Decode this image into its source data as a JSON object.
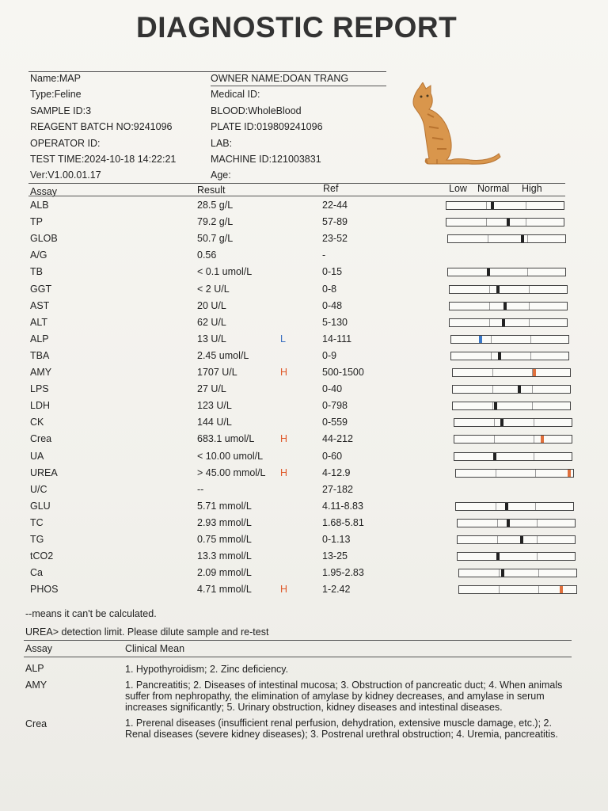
{
  "title": "DIAGNOSTIC REPORT",
  "info_left": [
    "Name:MAP",
    "Type:Feline",
    "SAMPLE ID:3",
    "REAGENT BATCH NO:9241096",
    "OPERATOR ID:",
    "TEST TIME:2024-10-18 14:22:21",
    "Ver:V1.00.01.17"
  ],
  "info_right": [
    "OWNER NAME:DOAN TRANG",
    "Medical ID:",
    "BLOOD:WholeBlood",
    "PLATE ID:019809241096",
    "LAB:",
    "MACHINE ID:121003831",
    "Age:"
  ],
  "table_headers": {
    "assay": "Assay",
    "result": "Result",
    "ref": "Ref",
    "low": "Low",
    "normal": "Normal",
    "high": "High"
  },
  "colors": {
    "low": "#3a78c8",
    "high": "#e0703c",
    "normal": "#222222",
    "flag_high": "#e05a2a",
    "flag_low": "#3a6fc0"
  },
  "rows": [
    {
      "assay": "ALB",
      "result": "28.5 g/L",
      "flag": "",
      "ref": "22-44",
      "level": 0.39
    },
    {
      "assay": "TP",
      "result": "79.2 g/L",
      "flag": "",
      "ref": "57-89",
      "level": 0.53
    },
    {
      "assay": "GLOB",
      "result": "50.7 g/L",
      "flag": "",
      "ref": "23-52",
      "level": 0.64
    },
    {
      "assay": "A/G",
      "result": "0.56",
      "flag": "",
      "ref": "-",
      "level": null
    },
    {
      "assay": "TB",
      "result": "< 0.1 umol/L",
      "flag": "",
      "ref": "0-15",
      "level": 0.34
    },
    {
      "assay": "GGT",
      "result": "< 2 U/L",
      "flag": "",
      "ref": "0-8",
      "level": 0.41
    },
    {
      "assay": "AST",
      "result": "20 U/L",
      "flag": "",
      "ref": "0-48",
      "level": 0.47
    },
    {
      "assay": "ALT",
      "result": "62 U/L",
      "flag": "",
      "ref": "5-130",
      "level": 0.46
    },
    {
      "assay": "ALP",
      "result": "13 U/L",
      "flag": "L",
      "ref": "14-111",
      "level": 0.24
    },
    {
      "assay": "TBA",
      "result": "2.45 umol/L",
      "flag": "",
      "ref": "0-9",
      "level": 0.41
    },
    {
      "assay": "AMY",
      "result": "1707 U/L",
      "flag": "H",
      "ref": "500-1500",
      "level": 0.7
    },
    {
      "assay": "LPS",
      "result": "27 U/L",
      "flag": "",
      "ref": "0-40",
      "level": 0.57
    },
    {
      "assay": "LDH",
      "result": "123 U/L",
      "flag": "",
      "ref": "0-798",
      "level": 0.36
    },
    {
      "assay": "CK",
      "result": "144 U/L",
      "flag": "",
      "ref": "0-559",
      "level": 0.4
    },
    {
      "assay": "Crea",
      "result": "683.1 umol/L",
      "flag": "H",
      "ref": "44-212",
      "level": 0.76
    },
    {
      "assay": "UA",
      "result": "< 10.00 umol/L",
      "flag": "",
      "ref": "0-60",
      "level": 0.34
    },
    {
      "assay": "UREA",
      "result": "> 45.00 mmol/L",
      "flag": "H",
      "ref": "4-12.9",
      "level": 0.98
    },
    {
      "assay": "U/C",
      "result": "--",
      "flag": "",
      "ref": "27-182",
      "level": null
    },
    {
      "assay": "GLU",
      "result": "5.71 mmol/L",
      "flag": "",
      "ref": "4.11-8.83",
      "level": 0.43
    },
    {
      "assay": "TC",
      "result": "2.93 mmol/L",
      "flag": "",
      "ref": "1.68-5.81",
      "level": 0.43
    },
    {
      "assay": "TG",
      "result": "0.75 mmol/L",
      "flag": "",
      "ref": "0-1.13",
      "level": 0.55
    },
    {
      "assay": "tCO2",
      "result": "13.3 mmol/L",
      "flag": "",
      "ref": "13-25",
      "level": 0.34
    },
    {
      "assay": "Ca",
      "result": "2.09 mmol/L",
      "flag": "",
      "ref": "1.95-2.83",
      "level": 0.37
    },
    {
      "assay": "PHOS",
      "result": "4.71 mmol/L",
      "flag": "H",
      "ref": "1-2.42",
      "level": 0.88
    }
  ],
  "notes": {
    "calc": "--means it can't be calculated.",
    "urea": "UREA> detection limit. Please dilute sample and re-test"
  },
  "clinical": {
    "header_assay": "Assay",
    "header_mean": "Clinical Mean",
    "items": [
      {
        "assay": "ALP",
        "text": "1. Hypothyroidism; 2. Zinc deficiency."
      },
      {
        "assay": "AMY",
        "text": "1. Pancreatitis; 2. Diseases of intestinal mucosa; 3. Obstruction of pancreatic duct; 4. When animals suffer from nephropathy, the elimination of amylase by kidney decreases, and amylase in serum increases significantly; 5. Urinary obstruction, kidney diseases and intestinal diseases."
      },
      {
        "assay": "Crea",
        "text": "1. Prerenal diseases (insufficient renal perfusion, dehydration, extensive muscle damage, etc.); 2. Renal diseases (severe kidney diseases); 3. Postrenal urethral obstruction; 4. Uremia, pancreatitis."
      }
    ]
  },
  "image": {
    "icon": "cat-icon"
  }
}
